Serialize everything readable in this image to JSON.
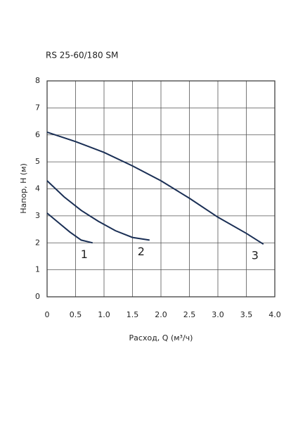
{
  "chart_data": {
    "type": "line",
    "title": "RS 25-60/180 SM",
    "x_label": "Расход, Q (м³/ч)",
    "y_label": "Напор, Н (м)",
    "xlim": [
      0,
      4
    ],
    "ylim": [
      0,
      8
    ],
    "xticks": [
      0,
      0.5,
      {
        "value": 1,
        "label": "1.0"
      },
      1.5,
      {
        "value": 2,
        "label": "2.0"
      },
      2.5,
      {
        "value": 3,
        "label": "3.0"
      },
      3.5,
      {
        "value": 4,
        "label": "4.0"
      }
    ],
    "yticks": [
      0,
      1,
      2,
      3,
      4,
      5,
      6,
      7,
      8
    ],
    "grid": true,
    "series": [
      {
        "name": "1",
        "color": "#1a2f55",
        "x": [
          0,
          0.2,
          0.4,
          0.6,
          0.8
        ],
        "values": [
          3.1,
          2.75,
          2.4,
          2.1,
          2.0
        ]
      },
      {
        "name": "2",
        "color": "#1a2f55",
        "x": [
          0,
          0.3,
          0.6,
          0.9,
          1.2,
          1.5,
          1.8
        ],
        "values": [
          4.3,
          3.7,
          3.2,
          2.8,
          2.45,
          2.2,
          2.1
        ]
      },
      {
        "name": "3",
        "color": "#1a2f55",
        "x": [
          0,
          0.5,
          1.0,
          1.5,
          2.0,
          2.5,
          3.0,
          3.5,
          3.8
        ],
        "values": [
          6.1,
          5.75,
          5.35,
          4.85,
          4.3,
          3.65,
          2.95,
          2.35,
          1.95
        ]
      }
    ]
  }
}
